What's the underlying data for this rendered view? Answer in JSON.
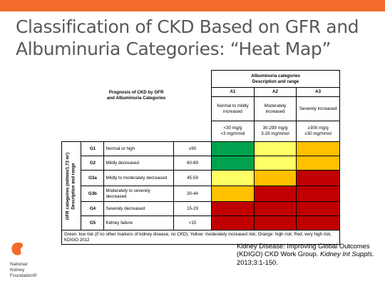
{
  "slide": {
    "title_line1": "Classification of CKD Based on GFR and",
    "title_line2": "Albuminuria Categories: “Heat Map”",
    "accent_color": "#f26b2b"
  },
  "table": {
    "prognosis_title_line1": "Prognosis of CKD by GFR",
    "prognosis_title_line2": "and Albuminuria Categories",
    "albuminuria_header_line1": "Albuminuria categories",
    "albuminuria_header_line2": "Description and range",
    "albuminuria_categories": [
      {
        "code": "A1",
        "description": "Normal to mildly increased",
        "range": "<30 mg/g\n<3 mg/mmol"
      },
      {
        "code": "A2",
        "description": "Moderately increased",
        "range": "30-299 mg/g\n3-29 mg/mmol"
      },
      {
        "code": "A3",
        "description": "Severely increased",
        "range": "≥300 mg/g\n≥30 mg/mmol"
      }
    ],
    "gfr_axis_label_line1": "GFR categories (ml/min/1.73 m²)",
    "gfr_axis_label_line2": "Description and range",
    "gfr_categories": [
      {
        "code": "G1",
        "description": "Normal or high",
        "range": "≥90",
        "risk": [
          "green",
          "yellow",
          "orange"
        ]
      },
      {
        "code": "G2",
        "description": "Mildly decreased",
        "range": "60-89",
        "risk": [
          "green",
          "yellow",
          "orange"
        ]
      },
      {
        "code": "G3a",
        "description": "Mildly to moderately decreased",
        "range": "45-59",
        "risk": [
          "yellow",
          "orange",
          "red"
        ]
      },
      {
        "code": "G3b",
        "description": "Moderately to severely decreased",
        "range": "30-44",
        "risk": [
          "orange",
          "red",
          "red"
        ]
      },
      {
        "code": "G4",
        "description": "Severely decreased",
        "range": "15-29",
        "risk": [
          "red",
          "red",
          "red"
        ]
      },
      {
        "code": "G5",
        "description": "Kidney failure",
        "range": "<15",
        "risk": [
          "red",
          "red",
          "red"
        ]
      }
    ],
    "risk_colors": {
      "green": "#00a24f",
      "yellow": "#ffff66",
      "orange": "#ffc000",
      "red": "#c00000"
    },
    "legend": "Green: low risk (if no other markers of kidney disease, no CKD); Yellow: moderately increased risk; Orange: high risk; Red, very high risk.",
    "source": "KDIGO 2012"
  },
  "logo": {
    "line1": "National",
    "line2": "Kidney",
    "line3": "Foundation®",
    "color": "#f26b2b"
  },
  "citation": {
    "line1": "Kidney Disease: Improving Global Outcomes",
    "line2_plain": "(KDIGO) CKD Work Group. ",
    "line2_italic": "Kidney Int Suppls.",
    "line3": "2013;3:1-150."
  }
}
